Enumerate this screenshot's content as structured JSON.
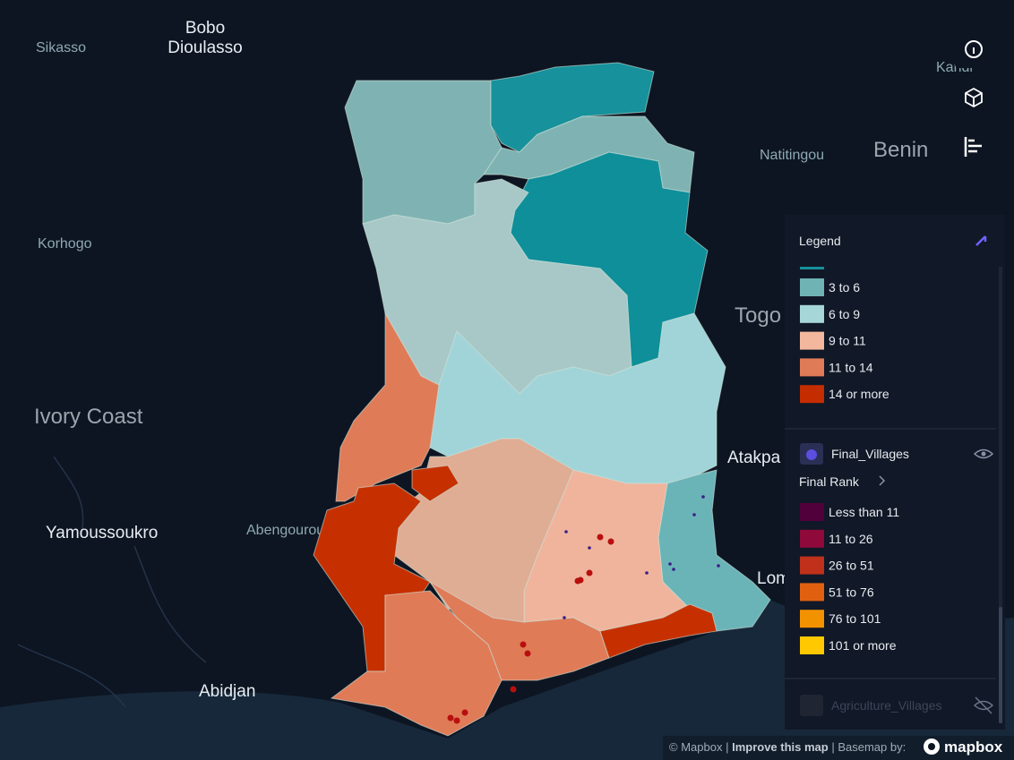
{
  "map_labels": {
    "bobo": [
      "Bobo",
      "Dioulasso"
    ],
    "sikasso": "Sikasso",
    "kandi": "Kandi",
    "natitingou": "Natitingou",
    "benin": "Benin",
    "korhogo": "Korhogo",
    "togo": "Togo",
    "ivory_coast": "Ivory Coast",
    "atakpa": "Atakpa",
    "yamoussoukro": "Yamoussoukro",
    "abengourou": "Abengourou",
    "abidjan": "Abidjan",
    "lome": "Lomé"
  },
  "legend": {
    "title": "Legend",
    "layers": [
      {
        "items": [
          {
            "label": "3 to 6",
            "color": "#6fb3b5"
          },
          {
            "label": "6 to 9",
            "color": "#a6d6d8"
          },
          {
            "label": "9 to 11",
            "color": "#f3b79e"
          },
          {
            "label": "11 to 14",
            "color": "#e07b58"
          },
          {
            "label": "14 or more",
            "color": "#c42d00"
          }
        ]
      },
      {
        "name": "Final_Villages",
        "field": "Final Rank",
        "items": [
          {
            "label": "Less than 11",
            "color": "#52003b"
          },
          {
            "label": "11 to 26",
            "color": "#8f0a3a"
          },
          {
            "label": "26 to 51",
            "color": "#c0311c"
          },
          {
            "label": "51 to 76",
            "color": "#e06010"
          },
          {
            "label": "76 to 101",
            "color": "#f39200"
          },
          {
            "label": "101 or more",
            "color": "#ffc800"
          }
        ]
      },
      {
        "name": "Agriculture_Villages"
      }
    ]
  },
  "attribution": {
    "copyright": "© Mapbox",
    "improve": "Improve this map",
    "basemap": "Basemap by:",
    "brand": "mapbox"
  }
}
